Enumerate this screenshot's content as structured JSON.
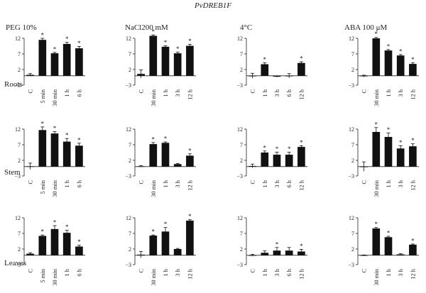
{
  "figure_title": "PvDREB1F",
  "row_labels": [
    "Roots",
    "Stem",
    "Leaves"
  ],
  "column_titles": [
    "PEG 10%",
    "NaCl200 mM",
    "4°C",
    "ABA 100 μM"
  ],
  "significance_marker": "*",
  "chart_data": [
    {
      "type": "bar",
      "row": "Roots",
      "column": "PEG 10%",
      "categories": [
        "C",
        "5 min",
        "30 min",
        "1 h",
        "6 h"
      ],
      "values": [
        0.3,
        11.5,
        7.2,
        10.2,
        8.8
      ],
      "errors": [
        0.4,
        0.5,
        0.3,
        0.5,
        0.6
      ],
      "significant": [
        false,
        true,
        true,
        true,
        true
      ],
      "ylim": [
        -3,
        12
      ],
      "yticks": [
        -3,
        2,
        7,
        12
      ]
    },
    {
      "type": "bar",
      "row": "Roots",
      "column": "NaCl200 mM",
      "categories": [
        "C",
        "30 min",
        "1 h",
        "3 h",
        "12 h"
      ],
      "values": [
        0.6,
        12.8,
        9.3,
        7.2,
        9.6
      ],
      "errors": [
        1.3,
        0.3,
        0.3,
        0.4,
        0.5
      ],
      "significant": [
        false,
        true,
        true,
        true,
        true
      ],
      "ylim": [
        -3,
        12
      ],
      "yticks": [
        -3,
        2,
        7,
        12
      ]
    },
    {
      "type": "bar",
      "row": "Roots",
      "column": "4°C",
      "categories": [
        "C",
        "1 h",
        "3 h",
        "6 h",
        "12 h"
      ],
      "values": [
        0.0,
        3.7,
        -0.3,
        0.0,
        4.1
      ],
      "errors": [
        0.8,
        0.5,
        0.2,
        0.7,
        0.4
      ],
      "significant": [
        false,
        true,
        false,
        false,
        true
      ],
      "ylim": [
        -3,
        12
      ],
      "yticks": [
        -3,
        2,
        7,
        12
      ]
    },
    {
      "type": "bar",
      "row": "Roots",
      "column": "ABA 100 μM",
      "categories": [
        "C",
        "30 min",
        "1 h",
        "3 h",
        "12 h"
      ],
      "values": [
        -0.1,
        12.0,
        8.1,
        6.5,
        3.8
      ],
      "errors": [
        0.3,
        0.3,
        0.3,
        0.3,
        0.4
      ],
      "significant": [
        false,
        true,
        true,
        true,
        true
      ],
      "ylim": [
        -3,
        12
      ],
      "yticks": [
        -3,
        2,
        7,
        12
      ]
    },
    {
      "type": "bar",
      "row": "Stem",
      "column": "PEG 10%",
      "categories": [
        "C",
        "5 min",
        "30 min",
        "1 h",
        "6 h"
      ],
      "values": [
        0.1,
        11.7,
        10.6,
        8.0,
        6.7
      ],
      "errors": [
        1.0,
        1.0,
        0.6,
        1.0,
        0.8
      ],
      "significant": [
        false,
        true,
        true,
        true,
        true
      ],
      "ylim": [
        -3,
        12
      ],
      "yticks": [
        -3,
        2,
        7,
        12
      ]
    },
    {
      "type": "bar",
      "row": "Stem",
      "column": "NaCl200 mM",
      "categories": [
        "C",
        "30 min",
        "1 h",
        "3 h",
        "12 h"
      ],
      "values": [
        0.1,
        7.2,
        7.6,
        0.8,
        3.5
      ],
      "errors": [
        0.2,
        0.5,
        0.3,
        0.2,
        0.6
      ],
      "significant": [
        false,
        true,
        true,
        false,
        true
      ],
      "ylim": [
        -3,
        12
      ],
      "yticks": [
        -3,
        2,
        7,
        12
      ]
    },
    {
      "type": "bar",
      "row": "Stem",
      "column": "4°C",
      "categories": [
        "C",
        "1 h",
        "3 h",
        "6 h",
        "12 h"
      ],
      "values": [
        0.2,
        4.5,
        3.8,
        3.8,
        6.3
      ],
      "errors": [
        0.6,
        0.5,
        0.8,
        0.8,
        0.4
      ],
      "significant": [
        false,
        true,
        true,
        true,
        true
      ],
      "ylim": [
        -3,
        12
      ],
      "yticks": [
        -3,
        2,
        7,
        12
      ]
    },
    {
      "type": "bar",
      "row": "Stem",
      "column": "ABA 100 μM",
      "categories": [
        "C",
        "30 min",
        "1 h",
        "3 h",
        "12 h"
      ],
      "values": [
        0.0,
        11.1,
        9.5,
        5.8,
        6.5
      ],
      "errors": [
        1.5,
        1.4,
        1.3,
        0.9,
        0.8
      ],
      "significant": [
        false,
        true,
        true,
        true,
        true
      ],
      "ylim": [
        -3,
        12
      ],
      "yticks": [
        -3,
        2,
        7,
        12
      ]
    },
    {
      "type": "bar",
      "row": "Leaves",
      "column": "PEG 10%",
      "categories": [
        "C",
        "5 min",
        "30 min",
        "1 h",
        "6 h"
      ],
      "values": [
        0.5,
        6.2,
        8.4,
        7.2,
        2.8
      ],
      "errors": [
        0.3,
        0.3,
        1.1,
        0.8,
        0.4
      ],
      "significant": [
        false,
        true,
        true,
        true,
        true
      ],
      "ylim": [
        -3,
        12
      ],
      "yticks": [
        -3,
        2,
        7,
        12
      ]
    },
    {
      "type": "bar",
      "row": "Leaves",
      "column": "NaCl200 mM",
      "categories": [
        "C",
        "30 min",
        "1 h",
        "3 h",
        "12 h"
      ],
      "values": [
        0.2,
        6.3,
        7.6,
        2.0,
        11.1
      ],
      "errors": [
        1.0,
        0.2,
        1.3,
        0.2,
        0.3
      ],
      "significant": [
        false,
        true,
        true,
        false,
        true
      ],
      "ylim": [
        -3,
        12
      ],
      "yticks": [
        -3,
        2,
        7,
        12
      ]
    },
    {
      "type": "bar",
      "row": "Leaves",
      "column": "4°C",
      "categories": [
        "C",
        "1 h",
        "3 h",
        "6 h",
        "12 h"
      ],
      "values": [
        0.0,
        0.8,
        1.5,
        1.5,
        1.2
      ],
      "errors": [
        0.3,
        0.6,
        1.0,
        1.0,
        0.7
      ],
      "significant": [
        false,
        false,
        true,
        false,
        true
      ],
      "ylim": [
        -3,
        12
      ],
      "yticks": [
        -3,
        2,
        7,
        12
      ]
    },
    {
      "type": "bar",
      "row": "Leaves",
      "column": "ABA 100 μM",
      "categories": [
        "C",
        "30 min",
        "1 h",
        "3 h",
        "12 h"
      ],
      "values": [
        0.0,
        8.6,
        5.8,
        0.3,
        3.4
      ],
      "errors": [
        0.1,
        0.3,
        0.3,
        0.2,
        0.2
      ],
      "significant": [
        false,
        true,
        true,
        false,
        true
      ],
      "ylim": [
        -3,
        12
      ],
      "yticks": [
        -3,
        2,
        7,
        12
      ]
    }
  ]
}
